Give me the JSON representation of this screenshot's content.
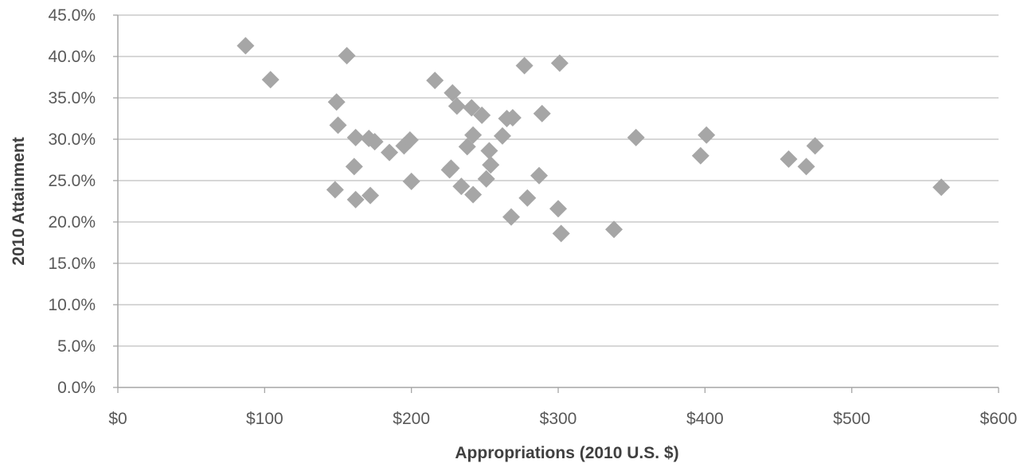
{
  "chart_data": {
    "type": "scatter",
    "title": "",
    "xlabel": "Appropriations  (2010 U.S. $)",
    "ylabel": "2010 Attainment",
    "xlim": [
      0,
      600
    ],
    "ylim": [
      0,
      45
    ],
    "x_ticks": [
      0,
      100,
      200,
      300,
      400,
      500,
      600
    ],
    "x_tick_labels": [
      "$0",
      "$100",
      "$200",
      "$300",
      "$400",
      "$500",
      "$600"
    ],
    "y_ticks": [
      0,
      5,
      10,
      15,
      20,
      25,
      30,
      35,
      40,
      45
    ],
    "y_tick_labels": [
      "0.0%",
      "5.0%",
      "10.0%",
      "15.0%",
      "20.0%",
      "25.0%",
      "30.0%",
      "35.0%",
      "40.0%",
      "45.0%"
    ],
    "grid": "horizontal",
    "legend": "none",
    "marker": "diamond",
    "colors": {
      "marker": "#a6a6a6",
      "grid": "#bfbfbf",
      "axis": "#a6a6a6",
      "tick_text": "#595959",
      "title_text": "#404040"
    },
    "series": [
      {
        "points": [
          [
            87,
            41.3
          ],
          [
            104,
            37.2
          ],
          [
            149,
            34.5
          ],
          [
            150,
            31.7
          ],
          [
            148,
            23.9
          ],
          [
            156,
            40.1
          ],
          [
            161,
            26.7
          ],
          [
            162,
            30.2
          ],
          [
            162,
            22.7
          ],
          [
            171,
            30.1
          ],
          [
            175,
            29.7
          ],
          [
            172,
            23.2
          ],
          [
            185,
            28.4
          ],
          [
            195,
            29.2
          ],
          [
            199,
            29.9
          ],
          [
            200,
            24.9
          ],
          [
            216,
            37.1
          ],
          [
            226,
            26.3
          ],
          [
            227,
            26.5
          ],
          [
            228,
            35.6
          ],
          [
            231,
            34.0
          ],
          [
            234,
            24.3
          ],
          [
            238,
            29.1
          ],
          [
            242,
            23.3
          ],
          [
            241,
            33.8
          ],
          [
            242,
            30.5
          ],
          [
            248,
            32.9
          ],
          [
            251,
            25.2
          ],
          [
            253,
            28.6
          ],
          [
            254,
            26.9
          ],
          [
            262,
            30.4
          ],
          [
            265,
            32.5
          ],
          [
            269,
            32.6
          ],
          [
            268,
            20.6
          ],
          [
            277,
            38.9
          ],
          [
            279,
            22.9
          ],
          [
            287,
            25.6
          ],
          [
            289,
            33.1
          ],
          [
            301,
            39.2
          ],
          [
            300,
            21.6
          ],
          [
            302,
            18.6
          ],
          [
            338,
            19.1
          ],
          [
            353,
            30.2
          ],
          [
            397,
            28.0
          ],
          [
            401,
            30.5
          ],
          [
            457,
            27.6
          ],
          [
            469,
            26.7
          ],
          [
            475,
            29.2
          ],
          [
            561,
            24.2
          ]
        ]
      }
    ]
  }
}
